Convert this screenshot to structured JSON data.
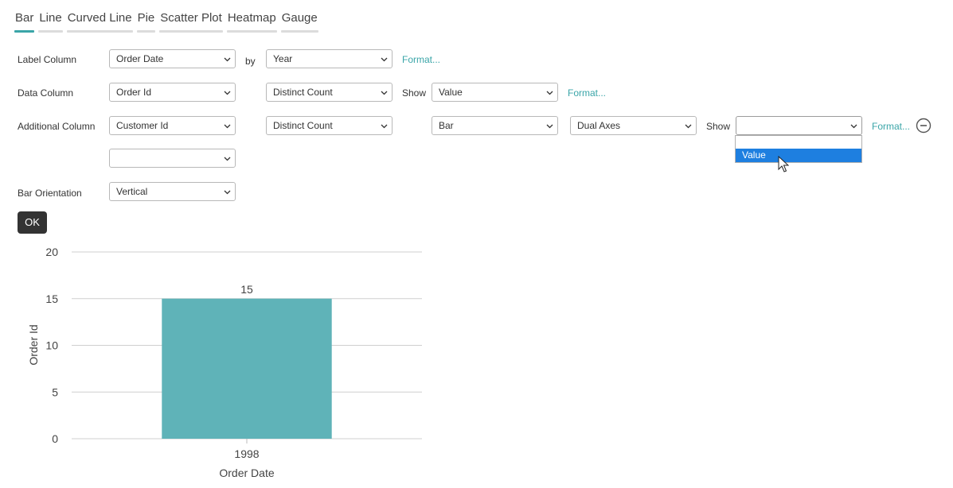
{
  "tabs": [
    {
      "label": "Bar",
      "active": true
    },
    {
      "label": "Line",
      "active": false
    },
    {
      "label": "Curved Line",
      "active": false
    },
    {
      "label": "Pie",
      "active": false
    },
    {
      "label": "Scatter Plot",
      "active": false
    },
    {
      "label": "Heatmap",
      "active": false
    },
    {
      "label": "Gauge",
      "active": false
    }
  ],
  "form": {
    "label_column": {
      "label": "Label Column",
      "column_value": "Order Date",
      "by_text": "by",
      "group_value": "Year",
      "format_link": "Format..."
    },
    "data_column": {
      "label": "Data Column",
      "column_value": "Order Id",
      "aggregate_value": "Distinct Count",
      "show_text": "Show",
      "show_value": "Value",
      "format_link": "Format..."
    },
    "additional_column": {
      "label": "Additional Column",
      "column_value": "Customer Id",
      "aggregate_value": "Distinct Count",
      "chart_type_value": "Bar",
      "axes_value": "Dual Axes",
      "show_text": "Show",
      "show_value": "",
      "format_link": "Format...",
      "dropdown_options": [
        "",
        "Value"
      ],
      "highlighted_option": "Value"
    },
    "extra_column_value": "",
    "bar_orientation": {
      "label": "Bar Orientation",
      "value": "Vertical"
    },
    "ok_label": "OK"
  },
  "colors": {
    "accent": "#3aa5a8",
    "bar": "#5fb3b8",
    "highlight": "#1e7fe0",
    "button": "#333333"
  },
  "icons": {
    "chevron": "chevron-down-icon",
    "remove": "minus-circle-icon",
    "cursor": "mouse-pointer-icon"
  },
  "chart_data": {
    "type": "bar",
    "categories": [
      "1998"
    ],
    "values": [
      15
    ],
    "data_labels": [
      "15"
    ],
    "xlabel": "Order Date",
    "ylabel": "Order Id",
    "yticks": [
      0,
      5,
      10,
      15,
      20
    ],
    "ylim": [
      0,
      20
    ],
    "grid": true,
    "legend": "none"
  }
}
